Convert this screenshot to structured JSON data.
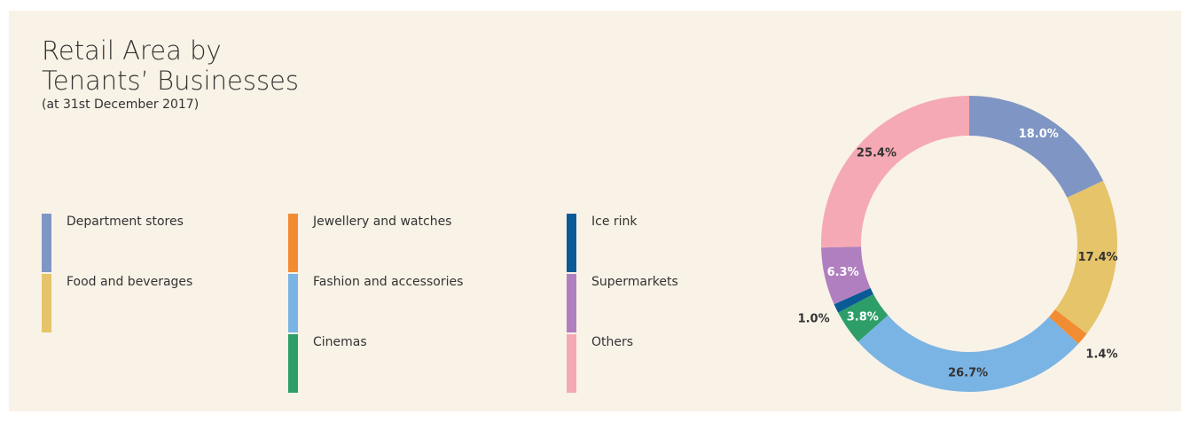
{
  "chart_data": {
    "type": "donut",
    "title": "Retail Area by Tenants’ Businesses",
    "subtitle": "(at 31st December 2017)",
    "categories": [
      "Department stores",
      "Food and beverages",
      "Jewellery and watches",
      "Fashion and accessories",
      "Cinemas",
      "Ice rink",
      "Supermarkets",
      "Others"
    ],
    "values": [
      18.0,
      17.4,
      1.4,
      26.7,
      3.8,
      1.0,
      6.3,
      25.4
    ],
    "value_labels": [
      "18.0%",
      "17.4%",
      "1.4%",
      "26.7%",
      "3.8%",
      "1.0%",
      "6.3%",
      "25.4%"
    ],
    "colors": [
      "#7f96c4",
      "#e6c46a",
      "#f28c33",
      "#7ab4e4",
      "#2e9e68",
      "#0a5a96",
      "#b07fc0",
      "#f5a9b4"
    ]
  }
}
